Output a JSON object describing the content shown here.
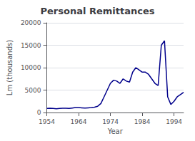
{
  "chart_data": {
    "type": "line",
    "title": "Personal Remittances",
    "xlabel": "Year",
    "ylabel": "Lm (thousands)",
    "x": [
      1954,
      1955,
      1956,
      1957,
      1958,
      1959,
      1960,
      1961,
      1962,
      1963,
      1964,
      1965,
      1966,
      1967,
      1968,
      1969,
      1970,
      1971,
      1972,
      1973,
      1974,
      1975,
      1976,
      1977,
      1978,
      1979,
      1980,
      1981,
      1982,
      1983,
      1984,
      1985,
      1986,
      1987,
      1988,
      1989,
      1990,
      1991,
      1992,
      1993,
      1994,
      1995,
      1996,
      1997
    ],
    "values": [
      900,
      950,
      900,
      850,
      900,
      950,
      950,
      900,
      1000,
      1100,
      1100,
      1050,
      1000,
      1050,
      1100,
      1200,
      1400,
      2000,
      3500,
      5000,
      6500,
      7200,
      7000,
      6500,
      7500,
      7000,
      6800,
      9000,
      10000,
      9500,
      9000,
      9000,
      8500,
      7500,
      6500,
      6000,
      15000,
      16000,
      3500,
      1800,
      2500,
      3500,
      4000,
      4500
    ],
    "color": "#00008B",
    "xlim": [
      1954,
      1997
    ],
    "xticks": [
      1954,
      1964,
      1974,
      1984,
      1994
    ],
    "ylim": [
      0,
      20000
    ],
    "yticks": [
      0,
      5000,
      10000,
      15000,
      20000
    ],
    "grid": true
  }
}
